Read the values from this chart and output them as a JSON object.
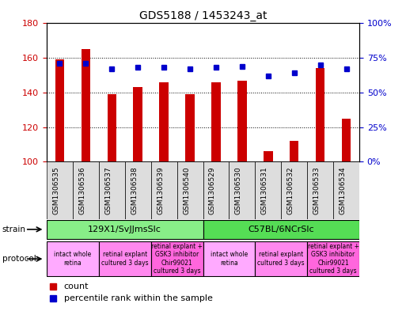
{
  "title": "GDS5188 / 1453243_at",
  "samples": [
    "GSM1306535",
    "GSM1306536",
    "GSM1306537",
    "GSM1306538",
    "GSM1306539",
    "GSM1306540",
    "GSM1306529",
    "GSM1306530",
    "GSM1306531",
    "GSM1306532",
    "GSM1306533",
    "GSM1306534"
  ],
  "count_values": [
    159,
    165,
    139,
    143,
    146,
    139,
    146,
    147,
    106,
    112,
    154,
    125
  ],
  "percentile_values": [
    71,
    71,
    67,
    68,
    68,
    67,
    68,
    69,
    62,
    64,
    70,
    67
  ],
  "ymin": 100,
  "ymax": 180,
  "y_ticks": [
    100,
    120,
    140,
    160,
    180
  ],
  "y2_ticks": [
    0,
    25,
    50,
    75,
    100
  ],
  "bar_color": "#cc0000",
  "dot_color": "#0000cc",
  "bar_width": 0.35,
  "strain_groups": [
    {
      "label": "129X1/SvJJmsSlc",
      "start": 0,
      "end": 6,
      "color": "#88ee88"
    },
    {
      "label": "C57BL/6NCrSlc",
      "start": 6,
      "end": 12,
      "color": "#55dd55"
    }
  ],
  "protocol_groups": [
    {
      "label": "intact whole\nretina",
      "start": 0,
      "end": 2,
      "color": "#ffaaff"
    },
    {
      "label": "retinal explant\ncultured 3 days",
      "start": 2,
      "end": 4,
      "color": "#ff88ee"
    },
    {
      "label": "retinal explant +\nGSK3 inhibitor\nChir99021\ncultured 3 days",
      "start": 4,
      "end": 6,
      "color": "#ff66dd"
    },
    {
      "label": "intact whole\nretina",
      "start": 6,
      "end": 8,
      "color": "#ffaaff"
    },
    {
      "label": "retinal explant\ncultured 3 days",
      "start": 8,
      "end": 10,
      "color": "#ff88ee"
    },
    {
      "label": "retinal explant +\nGSK3 inhibitor\nChir99021\ncultured 3 days",
      "start": 10,
      "end": 12,
      "color": "#ff66dd"
    }
  ],
  "xtick_bg_color": "#dddddd",
  "legend_count_color": "#cc0000",
  "legend_dot_color": "#0000cc",
  "grid_color": "#000000",
  "background_color": "#ffffff",
  "plot_bg_color": "#ffffff",
  "fig_width": 5.13,
  "fig_height": 3.93,
  "fig_dpi": 100
}
